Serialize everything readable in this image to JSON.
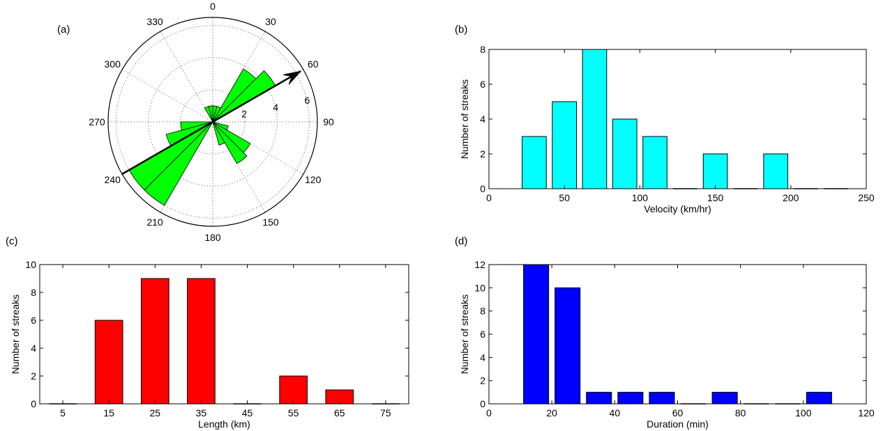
{
  "panels": {
    "a": "(a)",
    "b": "(b)",
    "c": "(c)",
    "d": "(d)"
  },
  "chart_data": [
    {
      "id": "a",
      "type": "polar-rose",
      "angle_labels": [
        "0",
        "30",
        "60",
        "90",
        "120",
        "150",
        "180",
        "210",
        "240",
        "270",
        "300",
        "330"
      ],
      "radial_ticks": [
        2,
        4,
        6
      ],
      "rmax": 6.5,
      "bin_width_deg": 15,
      "bars": [
        {
          "direction_deg": 52.5,
          "value": 4.5
        },
        {
          "direction_deg": 37.5,
          "value": 3.8
        },
        {
          "direction_deg": 22.5,
          "value": 1.0
        },
        {
          "direction_deg": 7.5,
          "value": 1.0
        },
        {
          "direction_deg": 352.5,
          "value": 1.0
        },
        {
          "direction_deg": 337.5,
          "value": 1.0
        },
        {
          "direction_deg": 232.5,
          "value": 6.0
        },
        {
          "direction_deg": 217.5,
          "value": 6.0
        },
        {
          "direction_deg": 247.5,
          "value": 3.0
        },
        {
          "direction_deg": 262.5,
          "value": 2.0
        },
        {
          "direction_deg": 142.5,
          "value": 3.0
        },
        {
          "direction_deg": 127.5,
          "value": 2.7
        },
        {
          "direction_deg": 157.5,
          "value": 1.5
        },
        {
          "direction_deg": 112.5,
          "value": 1.0
        }
      ],
      "arrow_direction_deg": 60,
      "bar_color": "#00ff00"
    },
    {
      "id": "b",
      "type": "bar",
      "xlabel": "Velocity (km/hr)",
      "ylabel": "Number of streaks",
      "xlim": [
        0,
        250
      ],
      "ylim": [
        0,
        8
      ],
      "xticks": [
        0,
        50,
        100,
        150,
        200,
        250
      ],
      "yticks": [
        0,
        2,
        4,
        6,
        8
      ],
      "x": [
        30,
        50,
        70,
        90,
        110,
        130,
        150,
        170,
        190,
        210,
        230
      ],
      "values": [
        3,
        5,
        8,
        4,
        3,
        0,
        2,
        0,
        2,
        0,
        0
      ],
      "bar_width": 16,
      "baseline_from": 0,
      "color": "#00ffff"
    },
    {
      "id": "c",
      "type": "bar",
      "xlabel": "Length (km)",
      "ylabel": "Number of streaks",
      "xlim": [
        0,
        80
      ],
      "ylim": [
        0,
        10
      ],
      "xticks": [
        5,
        15,
        25,
        35,
        45,
        55,
        65,
        75
      ],
      "yticks": [
        0,
        2,
        4,
        6,
        8,
        10
      ],
      "x": [
        5,
        15,
        25,
        35,
        45,
        55,
        65,
        75
      ],
      "values": [
        0,
        6,
        9,
        9,
        0,
        2,
        1,
        0
      ],
      "bar_width": 6,
      "baseline_from": 0,
      "color": "#ff0000"
    },
    {
      "id": "d",
      "type": "bar",
      "xlabel": "Duration (min)",
      "ylabel": "Number of streaks",
      "xlim": [
        0,
        120
      ],
      "ylim": [
        0,
        12
      ],
      "xticks": [
        0,
        20,
        40,
        60,
        80,
        100,
        120
      ],
      "yticks": [
        0,
        2,
        4,
        6,
        8,
        10,
        12
      ],
      "x": [
        15,
        25,
        35,
        45,
        55,
        65,
        75,
        85,
        95,
        105
      ],
      "values": [
        12,
        10,
        1,
        1,
        1,
        0,
        1,
        0,
        0,
        1
      ],
      "bar_width": 8,
      "baseline_from": 0,
      "color": "#0000ff"
    }
  ]
}
